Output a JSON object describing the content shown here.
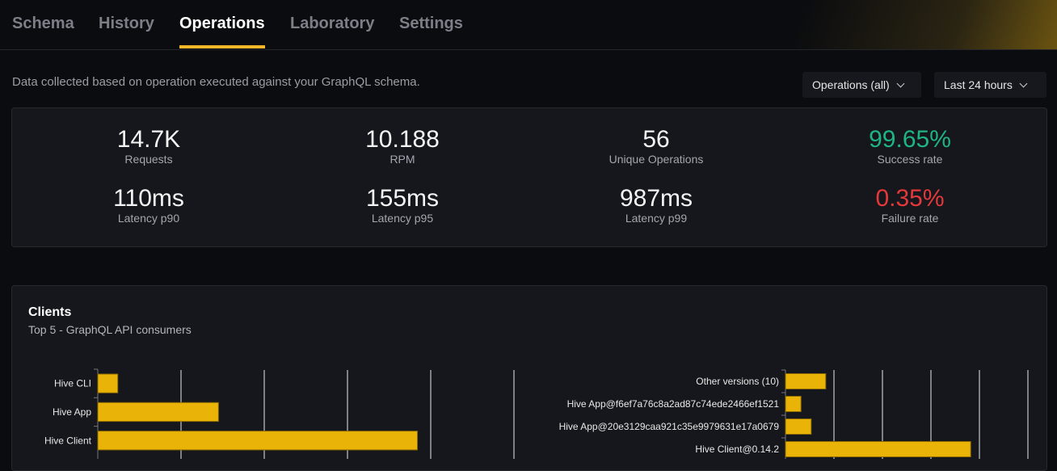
{
  "tabs": [
    {
      "label": "Schema"
    },
    {
      "label": "History"
    },
    {
      "label": "Operations",
      "active": true
    },
    {
      "label": "Laboratory"
    },
    {
      "label": "Settings"
    }
  ],
  "description": "Data collected based on operation executed against your GraphQL schema.",
  "filters": {
    "operations": "Operations (all)",
    "period": "Last 24 hours"
  },
  "stats": [
    {
      "value": "14.7K",
      "label": "Requests"
    },
    {
      "value": "10.188",
      "label": "RPM"
    },
    {
      "value": "56",
      "label": "Unique Operations"
    },
    {
      "value": "99.65%",
      "label": "Success rate",
      "color": "#1fb583"
    },
    {
      "value": "110ms",
      "label": "Latency p90"
    },
    {
      "value": "155ms",
      "label": "Latency p95"
    },
    {
      "value": "987ms",
      "label": "Latency p99"
    },
    {
      "value": "0.35%",
      "label": "Failure rate",
      "color": "#e5383b"
    }
  ],
  "clients": {
    "title": "Clients",
    "subtitle": "Top 5 - GraphQL API consumers"
  },
  "chart_data": [
    {
      "type": "bar",
      "orientation": "horizontal",
      "categories": [
        "Hive CLI",
        "Hive App",
        "Hive Client"
      ],
      "values": [
        0.24,
        1.45,
        3.84
      ],
      "xlim": [
        0,
        5
      ],
      "grid": true,
      "color": "#eab308"
    },
    {
      "type": "bar",
      "orientation": "horizontal",
      "categories": [
        "Other versions (10)",
        "Hive App@f6ef7a76c8a2ad87c74ede2466ef1521",
        "Hive App@20e3129caa921c35e9979631e17a0679",
        "Hive Client@0.14.2"
      ],
      "values": [
        0.83,
        0.32,
        0.53,
        3.82
      ],
      "xlim": [
        0,
        5
      ],
      "grid": true,
      "color": "#eab308"
    }
  ]
}
